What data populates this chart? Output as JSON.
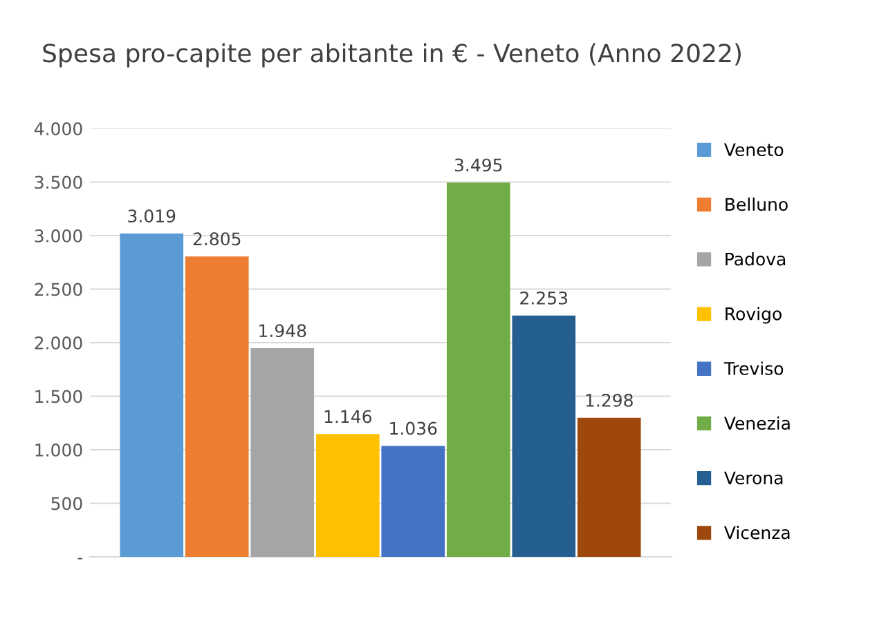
{
  "chart_data": {
    "type": "bar",
    "title": "Spesa pro-capite per abitante in € - Veneto (Anno 2022)",
    "categories": [
      null
    ],
    "series": [
      {
        "name": "Veneto",
        "color": "#5b9bd5",
        "values": [
          3019
        ],
        "value_labels": [
          "3.019"
        ]
      },
      {
        "name": "Belluno",
        "color": "#ed7d31",
        "values": [
          2805
        ],
        "value_labels": [
          "2.805"
        ]
      },
      {
        "name": "Padova",
        "color": "#a5a5a5",
        "values": [
          1948
        ],
        "value_labels": [
          "1.948"
        ]
      },
      {
        "name": "Rovigo",
        "color": "#ffc000",
        "values": [
          1146
        ],
        "value_labels": [
          "1.146"
        ]
      },
      {
        "name": "Treviso",
        "color": "#4472c4",
        "values": [
          1036
        ],
        "value_labels": [
          "1.036"
        ]
      },
      {
        "name": "Venezia",
        "color": "#70ad47",
        "values": [
          3495
        ],
        "value_labels": [
          "3.495"
        ]
      },
      {
        "name": "Verona",
        "color": "#255e91",
        "values": [
          2253
        ],
        "value_labels": [
          "2.253"
        ]
      },
      {
        "name": "Vicenza",
        "color": "#9e480e",
        "values": [
          1298
        ],
        "value_labels": [
          "1.298"
        ]
      }
    ],
    "ylim": [
      0,
      4000
    ],
    "yticks": [
      {
        "value": 0,
        "label": "-"
      },
      500,
      {
        "value": 1000,
        "label": "1.000"
      },
      {
        "value": 1500,
        "label": "1.500"
      },
      {
        "value": 2000,
        "label": "2.000"
      },
      {
        "value": 2500,
        "label": "2.500"
      },
      {
        "value": 3000,
        "label": "3.000"
      },
      {
        "value": 3500,
        "label": "3.500"
      },
      {
        "value": 4000,
        "label": "4.000"
      }
    ],
    "grid": "y",
    "legend": "right"
  }
}
